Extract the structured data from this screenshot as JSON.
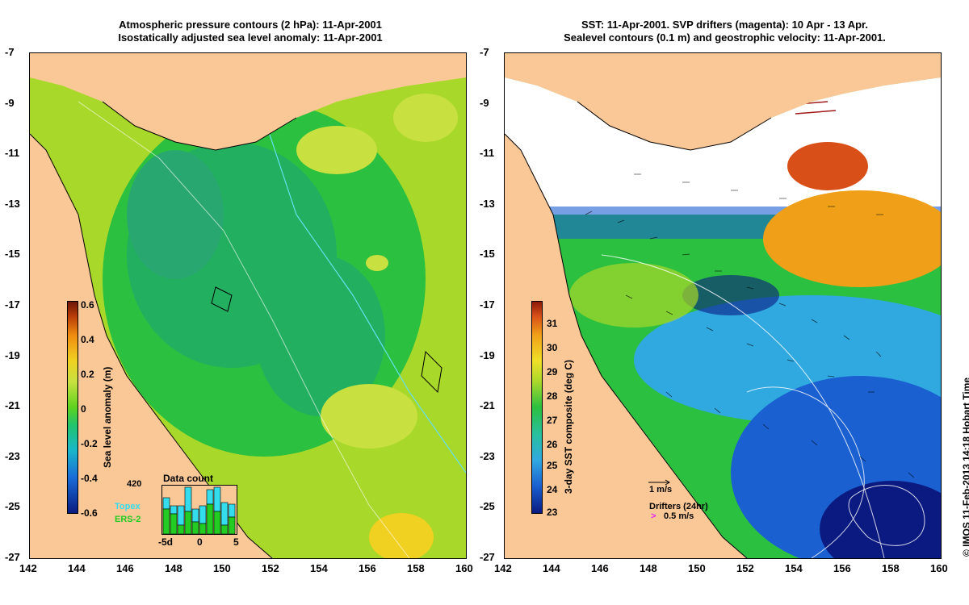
{
  "left": {
    "title_line1": "Atmospheric pressure contours (2 hPa): 11-Apr-2001",
    "title_line2": "Isostatically adjusted sea level anomaly: 11-Apr-2001",
    "colorbar": {
      "title": "Sea level anomaly (m)",
      "ticks": [
        "0.6",
        "0.4",
        "0.2",
        "0",
        "-0.2",
        "-0.4",
        "-0.6"
      ]
    },
    "data_count": {
      "title": "Data count",
      "max_label": "420",
      "x_labels": [
        "-5d",
        "0",
        "5"
      ],
      "legend": [
        {
          "name": "Topex",
          "color": "#33ddee"
        },
        {
          "name": "ERS-2",
          "color": "#22cc22"
        }
      ]
    }
  },
  "right": {
    "title_line1": "SST: 11-Apr-2001. SVP drifters (magenta): 10 Apr - 13 Apr.",
    "title_line2": "Sealevel contours (0.1 m) and geostrophic velocity: 11-Apr-2001.",
    "colorbar": {
      "title": "3-day SST composite (deg C)",
      "ticks": [
        "31",
        "30",
        "29",
        "28",
        "27",
        "26",
        "25",
        "24",
        "23"
      ]
    },
    "vector_scale": "1 m/s",
    "drifters_label": "Drifters (24hr)",
    "drifters_scale": "0.5 m/s"
  },
  "axes": {
    "lat_labels": [
      "-7",
      "-9",
      "-11",
      "-13",
      "-15",
      "-17",
      "-19",
      "-21",
      "-23",
      "-25",
      "-27"
    ],
    "lon_labels": [
      "142",
      "144",
      "146",
      "148",
      "150",
      "152",
      "154",
      "156",
      "158",
      "160"
    ],
    "lat_range": [
      -27,
      -7
    ],
    "lon_range": [
      142,
      160
    ]
  },
  "credit": "© IMOS 11-Feb-2013 14:18 Hobart Time",
  "colors": {
    "land": "#fac896",
    "sla_colormap": [
      "#0a1a80",
      "#1a6cd8",
      "#1ab7c8",
      "#22c46a",
      "#5ed21e",
      "#c8e040",
      "#f0d020",
      "#f08c10",
      "#b83c08",
      "#6a1408"
    ],
    "sst_colormap": [
      "#0a1a80",
      "#1a60d0",
      "#30a8e0",
      "#28c0a0",
      "#2cc040",
      "#a8d82a",
      "#f0e028",
      "#f0a018",
      "#d85018",
      "#8a1808"
    ]
  }
}
